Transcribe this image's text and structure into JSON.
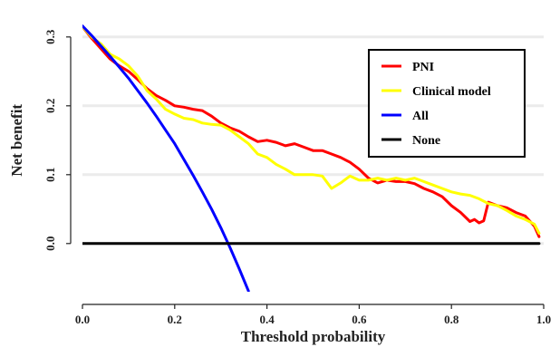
{
  "chart_data": {
    "type": "line",
    "title": "",
    "xlabel": "Threshold probability",
    "ylabel": "Net benefit",
    "xlim": [
      0,
      1
    ],
    "ylim": [
      -0.07,
      0.33
    ],
    "x_ticks": [
      0.0,
      0.2,
      0.4,
      0.6,
      0.8,
      1.0
    ],
    "x_tick_labels": [
      "0.0",
      "0.2",
      "0.4",
      "0.6",
      "0.8",
      "1.0"
    ],
    "y_ticks": [
      0.0,
      0.1,
      0.2,
      0.3
    ],
    "y_tick_labels": [
      "0.0",
      "0.1",
      "0.2",
      "0.3"
    ],
    "grid": true,
    "legend_position": "top-right",
    "series": [
      {
        "name": "PNI",
        "color": "#ff0000",
        "x": [
          0.0,
          0.02,
          0.04,
          0.06,
          0.08,
          0.1,
          0.12,
          0.14,
          0.16,
          0.18,
          0.2,
          0.22,
          0.24,
          0.26,
          0.28,
          0.3,
          0.32,
          0.34,
          0.36,
          0.38,
          0.4,
          0.42,
          0.44,
          0.46,
          0.48,
          0.5,
          0.52,
          0.54,
          0.56,
          0.58,
          0.6,
          0.62,
          0.64,
          0.66,
          0.68,
          0.7,
          0.72,
          0.74,
          0.76,
          0.78,
          0.8,
          0.82,
          0.84,
          0.85,
          0.86,
          0.87,
          0.88,
          0.9,
          0.92,
          0.94,
          0.96,
          0.98,
          0.99
        ],
        "y": [
          0.315,
          0.298,
          0.283,
          0.268,
          0.258,
          0.25,
          0.238,
          0.225,
          0.215,
          0.208,
          0.2,
          0.198,
          0.195,
          0.193,
          0.185,
          0.175,
          0.168,
          0.163,
          0.155,
          0.148,
          0.15,
          0.147,
          0.142,
          0.145,
          0.14,
          0.135,
          0.135,
          0.13,
          0.125,
          0.118,
          0.108,
          0.095,
          0.088,
          0.092,
          0.09,
          0.09,
          0.087,
          0.08,
          0.075,
          0.068,
          0.055,
          0.045,
          0.032,
          0.035,
          0.03,
          0.033,
          0.06,
          0.055,
          0.052,
          0.045,
          0.04,
          0.025,
          0.01
        ]
      },
      {
        "name": "Clinical model",
        "color": "#ffff00",
        "x": [
          0.0,
          0.02,
          0.04,
          0.06,
          0.08,
          0.1,
          0.12,
          0.14,
          0.16,
          0.18,
          0.2,
          0.22,
          0.24,
          0.26,
          0.28,
          0.3,
          0.32,
          0.34,
          0.36,
          0.38,
          0.4,
          0.42,
          0.44,
          0.46,
          0.48,
          0.5,
          0.52,
          0.54,
          0.56,
          0.58,
          0.6,
          0.62,
          0.64,
          0.66,
          0.68,
          0.7,
          0.72,
          0.74,
          0.76,
          0.78,
          0.8,
          0.82,
          0.84,
          0.86,
          0.88,
          0.9,
          0.92,
          0.94,
          0.96,
          0.98,
          0.99
        ],
        "y": [
          0.315,
          0.3,
          0.29,
          0.275,
          0.268,
          0.258,
          0.243,
          0.222,
          0.21,
          0.195,
          0.188,
          0.182,
          0.18,
          0.175,
          0.173,
          0.172,
          0.165,
          0.155,
          0.145,
          0.13,
          0.125,
          0.115,
          0.108,
          0.1,
          0.1,
          0.1,
          0.098,
          0.08,
          0.088,
          0.098,
          0.092,
          0.092,
          0.095,
          0.092,
          0.095,
          0.092,
          0.095,
          0.09,
          0.085,
          0.08,
          0.075,
          0.072,
          0.07,
          0.065,
          0.058,
          0.055,
          0.048,
          0.04,
          0.035,
          0.028,
          0.015
        ]
      },
      {
        "name": "All",
        "color": "#0000ff",
        "x": [
          0.0,
          0.02,
          0.04,
          0.06,
          0.08,
          0.1,
          0.12,
          0.14,
          0.16,
          0.18,
          0.2,
          0.22,
          0.24,
          0.26,
          0.28,
          0.3,
          0.32,
          0.34,
          0.36
        ],
        "y": [
          0.316,
          0.302,
          0.287,
          0.272,
          0.256,
          0.24,
          0.222,
          0.204,
          0.185,
          0.165,
          0.145,
          0.122,
          0.099,
          0.075,
          0.05,
          0.023,
          -0.006,
          -0.037,
          -0.069
        ]
      },
      {
        "name": "None",
        "color": "#000000",
        "x": [
          0.0,
          0.99
        ],
        "y": [
          0.0,
          0.0
        ]
      }
    ]
  }
}
